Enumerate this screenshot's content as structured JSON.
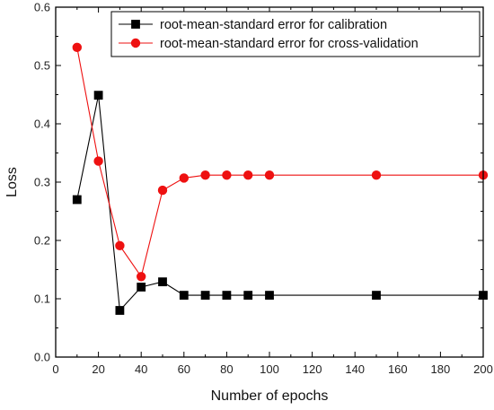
{
  "chart_data": {
    "type": "line",
    "xlabel": "Number of epochs",
    "ylabel": "Loss",
    "xlim": [
      0,
      200
    ],
    "ylim": [
      0.0,
      0.6
    ],
    "x_ticks": [
      0,
      20,
      40,
      60,
      80,
      100,
      120,
      140,
      160,
      180,
      200
    ],
    "y_ticks": [
      0.0,
      0.1,
      0.2,
      0.3,
      0.4,
      0.5,
      0.6
    ],
    "grid": false,
    "legend_position": "top-right",
    "series": [
      {
        "name": "root-mean-standard error for calibration",
        "marker": "square",
        "color": "#000000",
        "x": [
          10,
          20,
          30,
          40,
          50,
          60,
          70,
          80,
          90,
          100,
          150,
          200
        ],
        "y": [
          0.27,
          0.449,
          0.08,
          0.12,
          0.129,
          0.106,
          0.106,
          0.106,
          0.106,
          0.106,
          0.106,
          0.106
        ]
      },
      {
        "name": "root-mean-standard error for cross-validation",
        "marker": "circle",
        "color": "#ee1111",
        "x": [
          10,
          20,
          30,
          40,
          50,
          60,
          70,
          80,
          90,
          100,
          150,
          200
        ],
        "y": [
          0.531,
          0.336,
          0.191,
          0.138,
          0.286,
          0.307,
          0.312,
          0.312,
          0.312,
          0.312,
          0.312,
          0.312
        ]
      }
    ]
  }
}
